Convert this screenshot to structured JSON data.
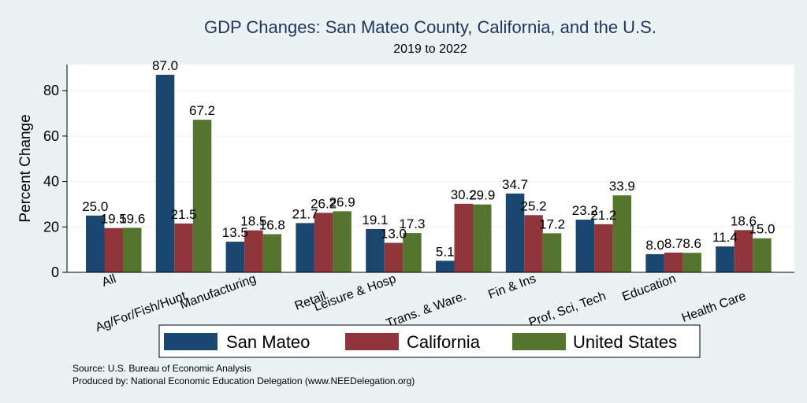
{
  "chart_data": {
    "type": "bar",
    "title": "GDP Changes: San Mateo County, California, and the U.S.",
    "subtitle": "2019 to 2022",
    "xlabel": "",
    "ylabel": "Percent Change",
    "ylim": [
      0,
      92
    ],
    "yticks": [
      0,
      20,
      40,
      60,
      80
    ],
    "grid": true,
    "legend_position": "bottom",
    "categories": [
      "All",
      "Ag/For/Fish/Hunt",
      "Manufacturing",
      "Retail",
      "Leisure & Hosp",
      "Trans. & Ware.",
      "Fin & Ins",
      "Prof, Sci, Tech",
      "Education",
      "Health Care"
    ],
    "series": [
      {
        "name": "San Mateo",
        "color": "#1a476f",
        "values": [
          25.0,
          87.0,
          13.5,
          21.7,
          19.1,
          5.1,
          34.7,
          23.2,
          8.0,
          11.4
        ],
        "labels": [
          "25.0",
          "87.0",
          "13.5",
          "21.7",
          "19.1",
          "5.1",
          "34.7",
          "23.2",
          "8.0",
          "11.4"
        ]
      },
      {
        "name": "California",
        "color": "#90353b",
        "values": [
          19.5,
          21.5,
          18.5,
          26.2,
          13.0,
          30.2,
          25.2,
          21.2,
          8.7,
          18.6
        ],
        "labels": [
          "19.5",
          "21.5",
          "18.5",
          "26.2",
          "13.0",
          "30.2",
          "25.2",
          "21.2",
          "8.7",
          "18.6"
        ]
      },
      {
        "name": "United States",
        "color": "#55752f",
        "values": [
          19.6,
          67.2,
          16.8,
          26.9,
          17.3,
          29.9,
          17.2,
          33.9,
          8.6,
          15.0
        ],
        "labels": [
          "19.6",
          "67.2",
          "16.8",
          "26.9",
          "17.3",
          "29.9",
          "17.2",
          "33.9",
          "8.6",
          "15.0"
        ]
      }
    ],
    "notes": [
      "Source: U.S. Bureau of Economic Analysis",
      "Produced by: National Economic Education Delegation (www.NEEDelegation.org)"
    ]
  }
}
